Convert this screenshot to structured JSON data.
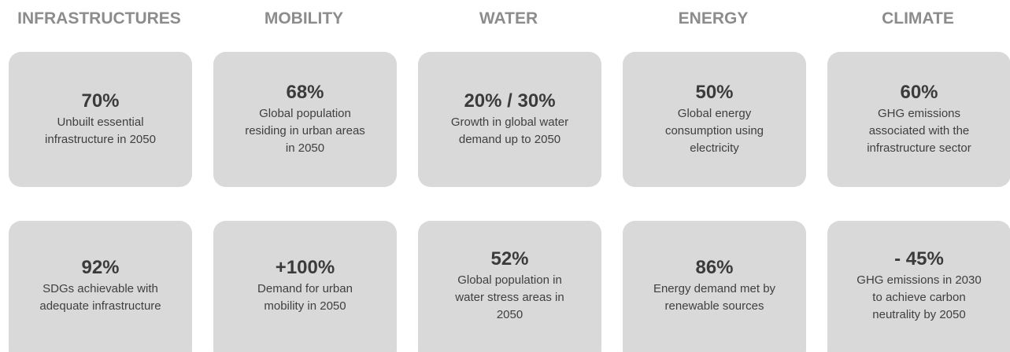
{
  "columns": [
    {
      "title": "INFRASTRUCTURES",
      "cards": [
        {
          "stat": "70%",
          "lines": [
            "Unbuilt essential",
            "infrastructure in 2050"
          ]
        },
        {
          "stat": "92%",
          "lines": [
            "SDGs achievable with",
            "adequate infrastructure"
          ]
        }
      ]
    },
    {
      "title": "MOBILITY",
      "cards": [
        {
          "stat": "68%",
          "lines": [
            "Global population",
            "residing in urban areas",
            "in 2050"
          ]
        },
        {
          "stat": "+100%",
          "lines": [
            "Demand for urban",
            "mobility in 2050"
          ]
        }
      ]
    },
    {
      "title": "WATER",
      "cards": [
        {
          "stat": "20% / 30%",
          "lines": [
            "Growth in global water",
            "demand up to 2050"
          ]
        },
        {
          "stat": "52%",
          "lines": [
            "Global population in",
            "water stress areas in",
            "2050"
          ]
        }
      ]
    },
    {
      "title": "ENERGY",
      "cards": [
        {
          "stat": "50%",
          "lines": [
            "Global energy",
            "consumption using",
            "electricity"
          ]
        },
        {
          "stat": "86%",
          "lines": [
            "Energy demand met by",
            "renewable sources"
          ]
        }
      ]
    },
    {
      "title": "CLIMATE",
      "cards": [
        {
          "stat": "60%",
          "lines": [
            "GHG emissions",
            "associated with the",
            "infrastructure sector"
          ]
        },
        {
          "stat": "- 45%",
          "lines": [
            "GHG emissions in 2030",
            "to achieve carbon",
            "neutrality by 2050"
          ]
        }
      ]
    }
  ]
}
